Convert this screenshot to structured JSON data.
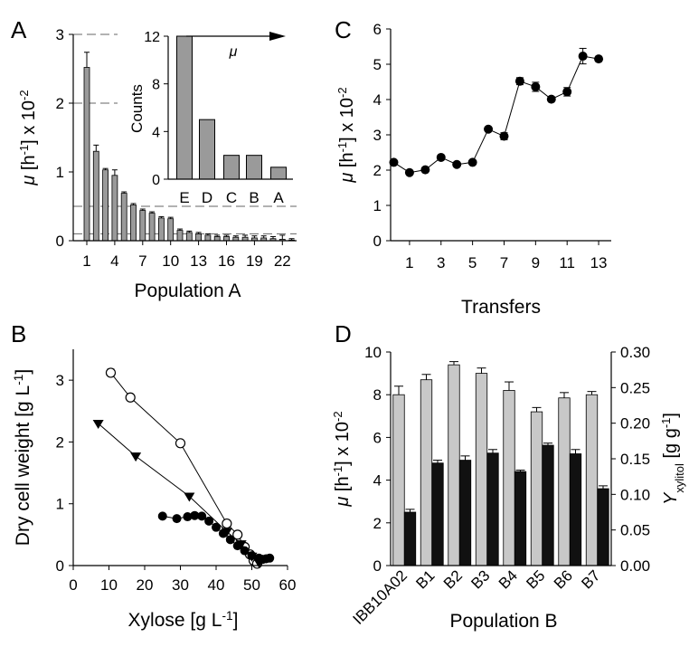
{
  "panel_letters": {
    "a": "A",
    "b": "B",
    "c": "C",
    "d": "D"
  },
  "chart_data": [
    {
      "panel": "A",
      "type": "bar",
      "xlabel": "Population A",
      "ylabel": "μ [h⁻¹] x 10⁻²",
      "ylim": [
        0,
        3
      ],
      "yticks": [
        0,
        1,
        2,
        3
      ],
      "xticks": [
        "1",
        "4",
        "7",
        "10",
        "13",
        "16",
        "19",
        "22"
      ],
      "categories": [
        1,
        2,
        3,
        4,
        5,
        6,
        7,
        8,
        9,
        10,
        11,
        12,
        13,
        14,
        15,
        16,
        17,
        18,
        19,
        20,
        21,
        22,
        23
      ],
      "values": [
        2.52,
        1.3,
        1.03,
        0.95,
        0.69,
        0.52,
        0.44,
        0.4,
        0.33,
        0.32,
        0.15,
        0.12,
        0.1,
        0.08,
        0.06,
        0.06,
        0.05,
        0.05,
        0.04,
        0.04,
        0.03,
        0.02,
        0.01
      ],
      "errors": [
        0.22,
        0.09,
        0.02,
        0.08,
        0.02,
        0.02,
        0.02,
        0.02,
        0.02,
        0.02,
        0.02,
        0.02,
        0.02,
        0.02,
        0.02,
        0.02,
        0.02,
        0.03,
        0.03,
        0.03,
        0.03,
        0.06,
        0.02
      ],
      "reference_lines": [
        3,
        2,
        0.5,
        0.1
      ],
      "inset": {
        "type": "bar",
        "ylabel": "Counts",
        "ylim": [
          0,
          12
        ],
        "yticks": [
          0,
          4,
          8,
          12
        ],
        "categories": [
          "E",
          "D",
          "C",
          "B",
          "A"
        ],
        "values": [
          12,
          5,
          2,
          2,
          1
        ],
        "arrow_label": "μ"
      }
    },
    {
      "panel": "B",
      "type": "scatter",
      "xlabel": "Xylose [g L⁻¹]",
      "ylabel": "Dry cell weight [g L⁻¹]",
      "xlim": [
        0,
        60
      ],
      "ylim": [
        0,
        3.5
      ],
      "xticks": [
        0,
        10,
        20,
        30,
        40,
        50,
        60
      ],
      "yticks": [
        0,
        1,
        2,
        3
      ],
      "series": [
        {
          "marker": "open-circle",
          "x": [
            10.5,
            16,
            30,
            43,
            46,
            48,
            49.5,
            50.5,
            51.5
          ],
          "y": [
            3.12,
            2.72,
            1.98,
            0.68,
            0.5,
            0.3,
            0.18,
            0.08,
            0.03
          ],
          "yerr": [
            0.06,
            0.03,
            0.03,
            0,
            0,
            0,
            0,
            0,
            0
          ]
        },
        {
          "marker": "filled-triangle",
          "x": [
            7,
            17.5,
            32.5,
            43,
            47,
            50,
            52
          ],
          "y": [
            2.3,
            1.77,
            1.12,
            0.55,
            0.35,
            0.15,
            0.05
          ],
          "yerr": [
            0.03,
            0.05,
            0.02,
            0,
            0,
            0,
            0
          ]
        },
        {
          "marker": "filled-circle",
          "x": [
            25,
            29,
            32,
            34,
            36,
            38,
            40,
            42,
            44,
            46,
            48,
            50,
            52,
            53,
            54,
            55
          ],
          "y": [
            0.8,
            0.76,
            0.79,
            0.81,
            0.8,
            0.72,
            0.62,
            0.52,
            0.42,
            0.32,
            0.24,
            0.16,
            0.12,
            0.1,
            0.11,
            0.12
          ],
          "yerr": [
            0.02,
            0.02,
            0.02,
            0.02,
            0.02,
            0.02,
            0.02,
            0.02,
            0.02,
            0.02,
            0.02,
            0.02,
            0.02,
            0.02,
            0.02,
            0.02
          ]
        }
      ]
    },
    {
      "panel": "C",
      "type": "line",
      "xlabel": "Transfers",
      "ylabel": "μ [h⁻¹] x 10⁻²",
      "ylim": [
        0,
        6
      ],
      "yticks": [
        0,
        1,
        2,
        3,
        4,
        5,
        6
      ],
      "xlim": [
        -0.2,
        13.8
      ],
      "xticks": [
        1,
        3,
        5,
        7,
        9,
        11,
        13
      ],
      "x": [
        0,
        1,
        2,
        3,
        4,
        5,
        6,
        7,
        8,
        9,
        10,
        11,
        12,
        13
      ],
      "values": [
        2.22,
        1.93,
        2.01,
        2.36,
        2.16,
        2.22,
        3.16,
        2.96,
        4.52,
        4.36,
        4.01,
        4.22,
        5.23,
        5.15
      ],
      "errors": [
        0.03,
        0.03,
        0.03,
        0.03,
        0.03,
        0.03,
        0.05,
        0.1,
        0.1,
        0.13,
        0.06,
        0.12,
        0.22,
        0.05
      ]
    },
    {
      "panel": "D",
      "type": "bar",
      "xlabel": "Population B",
      "ylabel": "μ [h⁻¹] x 10⁻²",
      "y2label": "Yxylitol [g g⁻¹]",
      "ylim": [
        0,
        10
      ],
      "yticks": [
        0,
        2,
        4,
        6,
        8,
        10
      ],
      "y2lim": [
        0,
        0.3
      ],
      "y2ticks": [
        "0.00",
        "0.05",
        "0.10",
        "0.15",
        "0.20",
        "0.25",
        "0.30"
      ],
      "categories": [
        "IBB10A02",
        "B1",
        "B2",
        "B3",
        "B4",
        "B5",
        "B6",
        "B7"
      ],
      "series": [
        {
          "color": "#c8c8c8",
          "axis": "left",
          "values": [
            8.0,
            8.7,
            9.4,
            9.0,
            8.2,
            7.2,
            7.85,
            8.0
          ],
          "errors": [
            0.4,
            0.25,
            0.15,
            0.25,
            0.4,
            0.2,
            0.25,
            0.15
          ]
        },
        {
          "color": "#111111",
          "axis": "right",
          "values": [
            0.075,
            0.144,
            0.148,
            0.158,
            0.132,
            0.169,
            0.157,
            0.108
          ],
          "errors": [
            0.004,
            0.004,
            0.006,
            0.005,
            0.002,
            0.003,
            0.006,
            0.004
          ]
        }
      ]
    }
  ]
}
